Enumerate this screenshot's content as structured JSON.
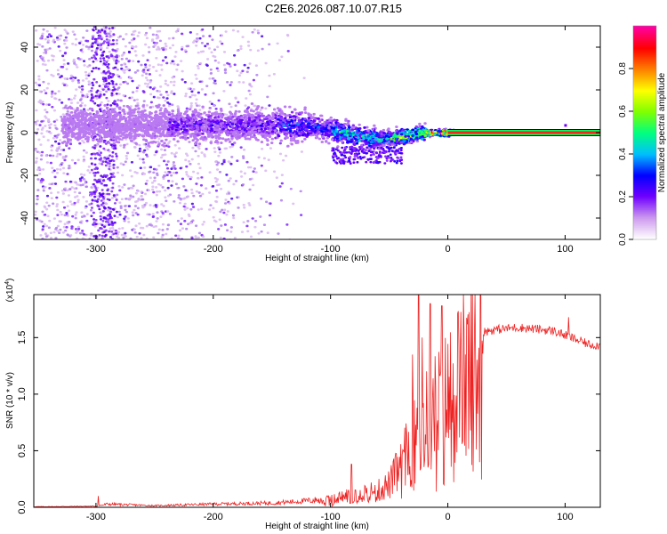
{
  "title": "C2E6.2026.087.10.07.R15",
  "colors": {
    "background": "#ffffff",
    "snr_line": "#ee2020",
    "spec_low": "#cc99ee",
    "spec_mid": "#5500ff",
    "axis": "#000000"
  },
  "chart_data": [
    {
      "type": "heatmap",
      "name": "spectrogram",
      "xlabel": "Height of straight line (km)",
      "ylabel": "Frequency (Hz)",
      "xlim": [
        -353,
        130
      ],
      "ylim": [
        -50,
        50
      ],
      "xticks": [
        -300,
        -200,
        -100,
        0,
        100
      ],
      "yticks": [
        -40,
        -20,
        0,
        20,
        40
      ],
      "carrier_start_km": 0,
      "colorbar": {
        "label": "Normalized spectral amplitude",
        "range": [
          0,
          1
        ],
        "ticks": [
          0.0,
          0.2,
          0.4,
          0.6,
          0.8
        ],
        "tick_labels": [
          "0.0",
          "0.2",
          "0.4",
          "0.6",
          "0.8"
        ],
        "colormap": [
          "#ffffff",
          "#cc99ee",
          "#7000ff",
          "#0000ff",
          "#00c0ff",
          "#00ff80",
          "#80ff00",
          "#ffff00",
          "#ff8000",
          "#ff0000",
          "#ff00a0"
        ]
      }
    },
    {
      "type": "line",
      "name": "snr",
      "xlabel": "Height of straight line (km)",
      "ylabel": "SNR (10 * v/v)",
      "y_multiplier": "(x10",
      "y_multiplier_exp": "4",
      "y_multiplier_close": ")",
      "xlim": [
        -353,
        130
      ],
      "ylim": [
        0,
        1.88
      ],
      "xticks": [
        -300,
        -200,
        -100,
        0,
        100
      ],
      "yticks": [
        0.0,
        0.5,
        1.0,
        1.5
      ],
      "ytick_labels": [
        "0.0",
        "0.5",
        "1.0",
        "1.5"
      ],
      "envelope": {
        "x": [
          -353,
          -300,
          -290,
          -250,
          -200,
          -150,
          -120,
          -100,
          -80,
          -60,
          -50,
          -40,
          -30,
          -20,
          -10,
          0,
          10,
          20,
          30,
          40,
          50,
          60,
          70,
          80,
          90,
          100,
          110,
          120,
          130
        ],
        "y": [
          0.005,
          0.01,
          0.03,
          0.015,
          0.03,
          0.04,
          0.06,
          0.08,
          0.15,
          0.18,
          0.25,
          0.45,
          0.7,
          0.9,
          1.05,
          1.2,
          1.38,
          1.5,
          1.55,
          1.57,
          1.58,
          1.59,
          1.58,
          1.57,
          1.56,
          1.52,
          1.48,
          1.44,
          1.43
        ]
      },
      "spikes": [
        {
          "x": -298,
          "y": 0.1
        },
        {
          "x": -82,
          "y": 0.38
        },
        {
          "x": -30,
          "y": 1.35
        },
        {
          "x": -25,
          "y": 1.88
        },
        {
          "x": -22,
          "y": 1.5
        },
        {
          "x": -15,
          "y": 1.8
        },
        {
          "x": -5,
          "y": 1.78
        },
        {
          "x": 103,
          "y": 1.68
        }
      ]
    }
  ]
}
